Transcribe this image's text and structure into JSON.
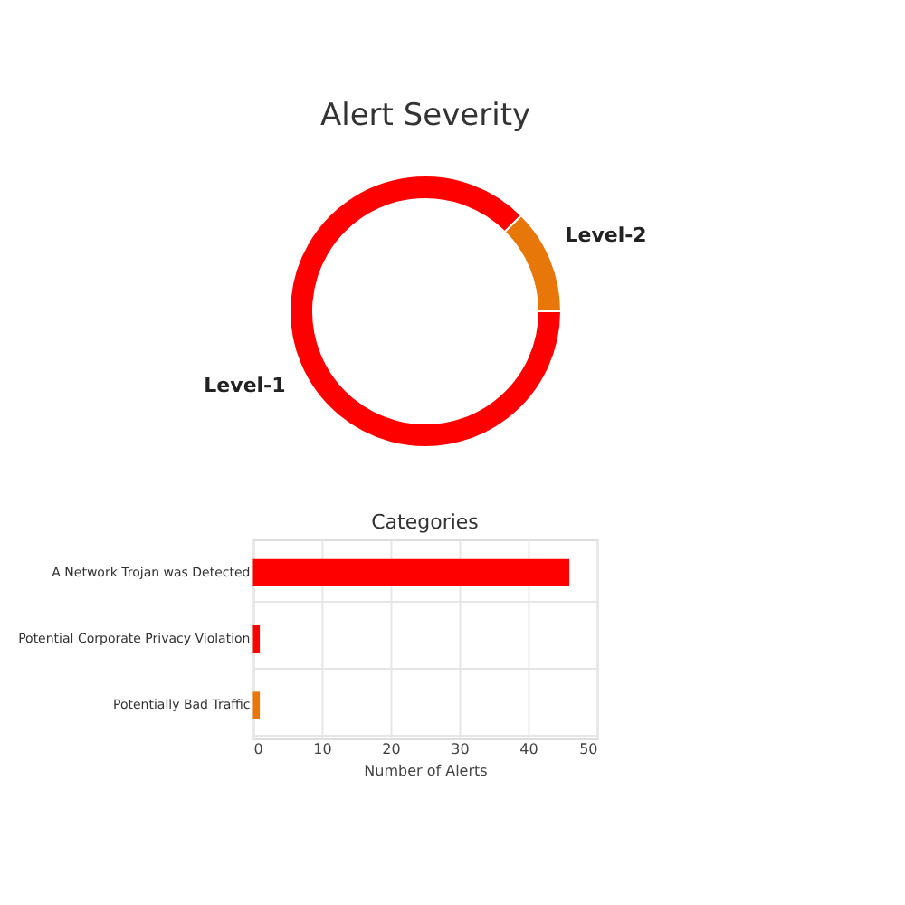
{
  "chart_data": [
    {
      "type": "donut",
      "title": "Alert Severity",
      "categories": [
        "Level-1",
        "Level-2"
      ],
      "values": [
        87.5,
        12.5
      ],
      "colors": [
        "#ff0000",
        "#e8770a"
      ],
      "legend": false
    },
    {
      "type": "bar",
      "orientation": "horizontal",
      "title": "Categories",
      "categories": [
        "A Network Trojan was Detected",
        "Potential Corporate Privacy Violation",
        "Potentially Bad Traffic"
      ],
      "values": [
        46,
        1,
        1
      ],
      "colors": [
        "#ff0000",
        "#ff0000",
        "#e8770a"
      ],
      "xlabel": "Number of Alerts",
      "xlim": [
        0,
        50
      ],
      "xticks": [
        0,
        10,
        20,
        30,
        40,
        50
      ],
      "grid": true
    }
  ]
}
